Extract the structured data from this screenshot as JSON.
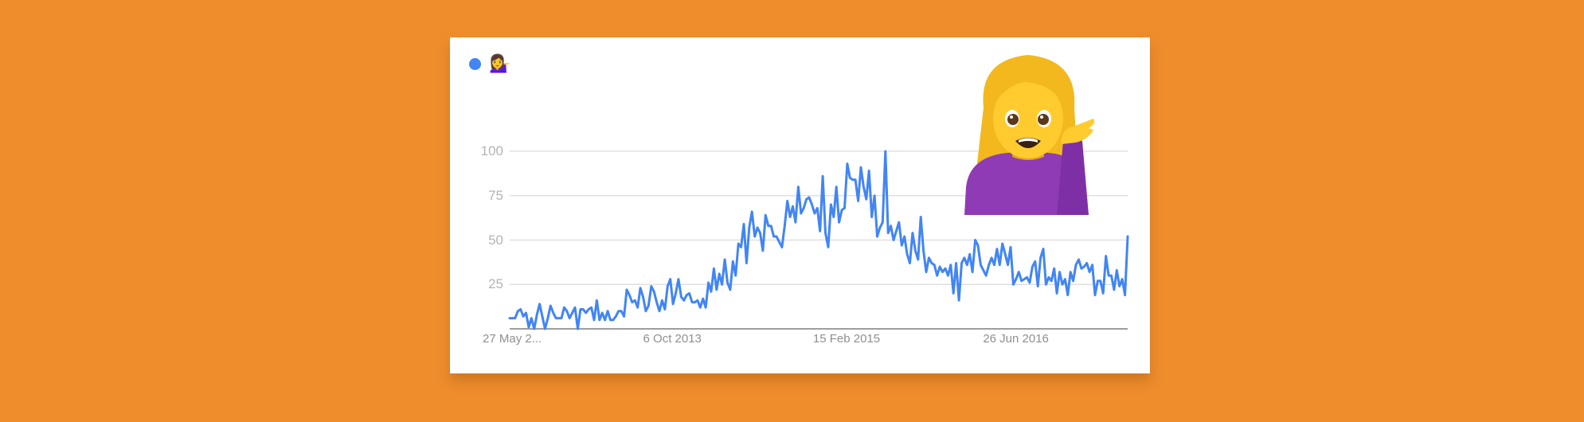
{
  "legend": {
    "marker_color": "#4285F4",
    "series_label": "💁‍♀️"
  },
  "overlay_emoji": {
    "name": "woman-tipping-hand",
    "glyph": "💁‍♀️"
  },
  "colors": {
    "background": "#EF8D2D",
    "card": "#FFFFFF",
    "line": "#4285F4",
    "grid": "#E0E0E0",
    "axis": "#9E9E9E"
  },
  "chart_data": {
    "type": "line",
    "title": "",
    "xlabel": "",
    "ylabel": "",
    "ylim": [
      0,
      100
    ],
    "grid": true,
    "legend_position": "top-left",
    "yticks": [
      25,
      50,
      75,
      100
    ],
    "xtick_labels": [
      "27 May 2...",
      "6 Oct 2013",
      "15 Feb 2015",
      "26 Jun 2016"
    ],
    "xtick_positions": [
      0.0,
      0.27,
      0.545,
      0.82
    ],
    "series": [
      {
        "name": "💁‍♀️",
        "color": "#4285F4",
        "values": [
          6,
          6,
          6,
          10,
          11,
          7,
          9,
          1,
          6,
          0,
          8,
          14,
          7,
          0,
          6,
          13,
          9,
          6,
          6,
          6,
          12,
          10,
          6,
          9,
          12,
          0,
          11,
          11,
          9,
          11,
          12,
          5,
          16,
          5,
          9,
          5,
          10,
          5,
          5,
          7,
          10,
          10,
          7,
          22,
          19,
          15,
          16,
          12,
          23,
          18,
          10,
          13,
          24,
          21,
          15,
          10,
          16,
          11,
          24,
          28,
          14,
          20,
          28,
          18,
          16,
          19,
          20,
          15,
          15,
          16,
          12,
          17,
          12,
          26,
          21,
          34,
          22,
          31,
          25,
          39,
          26,
          22,
          38,
          30,
          48,
          46,
          59,
          37,
          57,
          66,
          52,
          57,
          54,
          44,
          64,
          58,
          58,
          52,
          52,
          49,
          46,
          58,
          72,
          63,
          69,
          60,
          80,
          65,
          68,
          73,
          74,
          70,
          65,
          68,
          55,
          86,
          54,
          46,
          70,
          63,
          80,
          60,
          67,
          68,
          93,
          85,
          84,
          84,
          72,
          91,
          80,
          73,
          89,
          63,
          75,
          52,
          57,
          60,
          100,
          54,
          58,
          50,
          55,
          60,
          47,
          52,
          42,
          37,
          54,
          44,
          39,
          63,
          44,
          32,
          40,
          37,
          36,
          30,
          35,
          32,
          34,
          30,
          36,
          20,
          37,
          16,
          37,
          40,
          36,
          42,
          32,
          50,
          47,
          36,
          33,
          30,
          36,
          40,
          36,
          45,
          36,
          48,
          42,
          36,
          46,
          25,
          28,
          32,
          27,
          28,
          29,
          26,
          35,
          38,
          24,
          40,
          45,
          25,
          29,
          27,
          34,
          20,
          32,
          25,
          28,
          19,
          32,
          27,
          36,
          39,
          34,
          35,
          37,
          32,
          36,
          19,
          27,
          27,
          20,
          41,
          30,
          30,
          22,
          33,
          24,
          28,
          19,
          52
        ]
      }
    ]
  }
}
